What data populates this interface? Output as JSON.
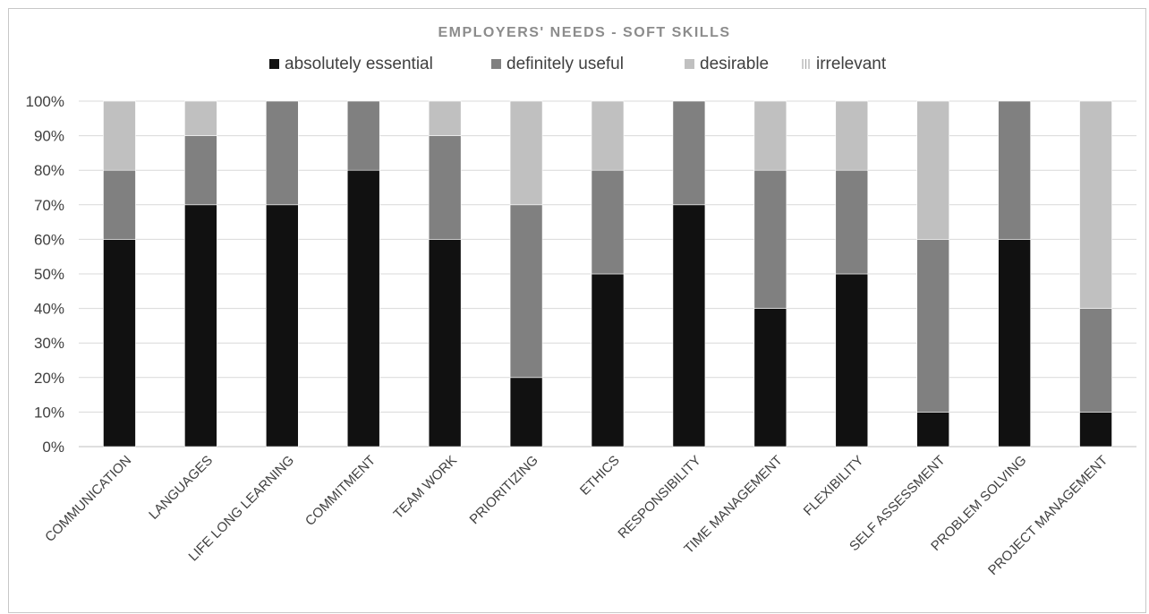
{
  "chart_data": {
    "type": "bar",
    "stacked": true,
    "percent": true,
    "title": "EMPLOYERS' NEEDS - SOFT SKILLS",
    "categories": [
      "COMMUNICATION",
      "LANGUAGES",
      "LIFE LONG LEARNING",
      "COMMITMENT",
      "TEAM WORK",
      "PRIORITIZING",
      "ETHICS",
      "RESPONSIBILITY",
      "TIME MANAGEMENT",
      "FLEXIBILITY",
      "SELF ASSESSMENT",
      "PROBLEM SOLVING",
      "PROJECT MANAGEMENT"
    ],
    "series": [
      {
        "name": "absolutely essential",
        "color": "#111111",
        "values": [
          60,
          70,
          70,
          80,
          60,
          20,
          50,
          70,
          40,
          50,
          10,
          60,
          10
        ]
      },
      {
        "name": "definitely useful",
        "color": "#808080",
        "values": [
          20,
          20,
          30,
          20,
          30,
          50,
          30,
          30,
          40,
          30,
          50,
          40,
          30
        ]
      },
      {
        "name": "desirable",
        "color": "#c0c0c0",
        "values": [
          20,
          10,
          0,
          0,
          10,
          30,
          20,
          0,
          20,
          20,
          40,
          0,
          60
        ]
      },
      {
        "name": "irrelevant",
        "color": "#e6e6e6",
        "values": [
          0,
          0,
          0,
          0,
          0,
          0,
          0,
          0,
          0,
          0,
          0,
          0,
          0
        ]
      }
    ],
    "yticks": [
      "0%",
      "10%",
      "20%",
      "30%",
      "40%",
      "50%",
      "60%",
      "70%",
      "80%",
      "90%",
      "100%"
    ],
    "ylim": [
      0,
      100
    ],
    "grid": true,
    "legend": "top"
  }
}
